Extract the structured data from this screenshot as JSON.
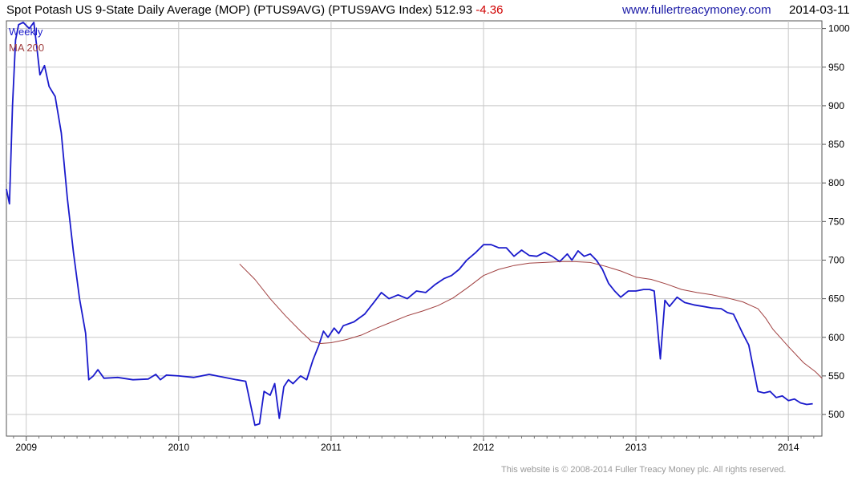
{
  "header": {
    "title": "Spot Potash US 9-State Daily Average (MOP) (PTUS9AVG) (PTUS9AVG Index) 512.93",
    "change": "-4.36",
    "site": "www.fullertreacymoney.com",
    "date": "2014-03-11"
  },
  "footer": "This website is © 2008-2014 Fuller Treacy Money plc. All rights reserved.",
  "colors": {
    "weekly": "#1a1acc",
    "ma": "#a04040",
    "grid": "#c8c8c8",
    "ink": "#000000"
  },
  "chart_data": {
    "type": "line",
    "title": "Spot Potash US 9-State Daily Average (MOP) (PTUS9AVG) (PTUS9AVG Index) 512.93 -4.36",
    "xlabel": "",
    "ylabel": "",
    "grid": true,
    "legend_position": "top-left",
    "xlim": [
      2008.87,
      2014.22
    ],
    "ylim": [
      472,
      1010
    ],
    "y_ticks": [
      500,
      550,
      600,
      650,
      700,
      750,
      800,
      850,
      900,
      950,
      1000
    ],
    "x_ticks": [
      {
        "label": "2009",
        "value": 2009.0
      },
      {
        "label": "2010",
        "value": 2010.0
      },
      {
        "label": "2011",
        "value": 2011.0
      },
      {
        "label": "2012",
        "value": 2012.0
      },
      {
        "label": "2013",
        "value": 2013.0
      },
      {
        "label": "2014",
        "value": 2014.0
      }
    ],
    "series": [
      {
        "name": "Weekly",
        "points": [
          [
            2008.87,
            792
          ],
          [
            2008.89,
            773
          ],
          [
            2008.91,
            900
          ],
          [
            2008.93,
            985
          ],
          [
            2008.95,
            1005
          ],
          [
            2008.98,
            1008
          ],
          [
            2009.02,
            1000
          ],
          [
            2009.05,
            1008
          ],
          [
            2009.07,
            975
          ],
          [
            2009.09,
            940
          ],
          [
            2009.12,
            952
          ],
          [
            2009.15,
            925
          ],
          [
            2009.19,
            912
          ],
          [
            2009.23,
            865
          ],
          [
            2009.27,
            780
          ],
          [
            2009.31,
            710
          ],
          [
            2009.35,
            650
          ],
          [
            2009.39,
            605
          ],
          [
            2009.41,
            545
          ],
          [
            2009.44,
            550
          ],
          [
            2009.47,
            558
          ],
          [
            2009.51,
            547
          ],
          [
            2009.6,
            548
          ],
          [
            2009.7,
            545
          ],
          [
            2009.8,
            546
          ],
          [
            2009.85,
            552
          ],
          [
            2009.88,
            545
          ],
          [
            2009.92,
            551
          ],
          [
            2010.0,
            550
          ],
          [
            2010.1,
            548
          ],
          [
            2010.2,
            552
          ],
          [
            2010.3,
            548
          ],
          [
            2010.38,
            545
          ],
          [
            2010.44,
            543
          ],
          [
            2010.5,
            486
          ],
          [
            2010.53,
            488
          ],
          [
            2010.56,
            530
          ],
          [
            2010.6,
            525
          ],
          [
            2010.63,
            540
          ],
          [
            2010.66,
            495
          ],
          [
            2010.69,
            536
          ],
          [
            2010.72,
            545
          ],
          [
            2010.75,
            540
          ],
          [
            2010.8,
            550
          ],
          [
            2010.84,
            545
          ],
          [
            2010.88,
            570
          ],
          [
            2010.92,
            590
          ],
          [
            2010.95,
            608
          ],
          [
            2010.98,
            600
          ],
          [
            2011.02,
            612
          ],
          [
            2011.05,
            605
          ],
          [
            2011.08,
            615
          ],
          [
            2011.15,
            620
          ],
          [
            2011.22,
            630
          ],
          [
            2011.28,
            645
          ],
          [
            2011.33,
            658
          ],
          [
            2011.38,
            650
          ],
          [
            2011.44,
            655
          ],
          [
            2011.5,
            650
          ],
          [
            2011.56,
            660
          ],
          [
            2011.62,
            658
          ],
          [
            2011.68,
            668
          ],
          [
            2011.74,
            676
          ],
          [
            2011.79,
            680
          ],
          [
            2011.84,
            688
          ],
          [
            2011.89,
            700
          ],
          [
            2011.95,
            710
          ],
          [
            2012.0,
            720
          ],
          [
            2012.05,
            720
          ],
          [
            2012.1,
            716
          ],
          [
            2012.15,
            716
          ],
          [
            2012.2,
            705
          ],
          [
            2012.25,
            713
          ],
          [
            2012.3,
            706
          ],
          [
            2012.35,
            705
          ],
          [
            2012.4,
            710
          ],
          [
            2012.45,
            705
          ],
          [
            2012.5,
            698
          ],
          [
            2012.55,
            708
          ],
          [
            2012.58,
            700
          ],
          [
            2012.62,
            712
          ],
          [
            2012.66,
            705
          ],
          [
            2012.7,
            708
          ],
          [
            2012.74,
            700
          ],
          [
            2012.78,
            688
          ],
          [
            2012.82,
            670
          ],
          [
            2012.86,
            660
          ],
          [
            2012.9,
            652
          ],
          [
            2012.95,
            660
          ],
          [
            2013.0,
            660
          ],
          [
            2013.05,
            662
          ],
          [
            2013.09,
            662
          ],
          [
            2013.12,
            660
          ],
          [
            2013.16,
            572
          ],
          [
            2013.19,
            648
          ],
          [
            2013.22,
            640
          ],
          [
            2013.27,
            652
          ],
          [
            2013.32,
            645
          ],
          [
            2013.38,
            642
          ],
          [
            2013.44,
            640
          ],
          [
            2013.5,
            638
          ],
          [
            2013.56,
            637
          ],
          [
            2013.6,
            632
          ],
          [
            2013.64,
            630
          ],
          [
            2013.7,
            605
          ],
          [
            2013.74,
            590
          ],
          [
            2013.77,
            560
          ],
          [
            2013.8,
            530
          ],
          [
            2013.84,
            528
          ],
          [
            2013.88,
            530
          ],
          [
            2013.92,
            522
          ],
          [
            2013.96,
            524
          ],
          [
            2014.0,
            518
          ],
          [
            2014.04,
            520
          ],
          [
            2014.08,
            515
          ],
          [
            2014.12,
            513
          ],
          [
            2014.16,
            514
          ]
        ]
      },
      {
        "name": "MA 200",
        "points": [
          [
            2010.4,
            695
          ],
          [
            2010.5,
            675
          ],
          [
            2010.6,
            650
          ],
          [
            2010.7,
            628
          ],
          [
            2010.8,
            608
          ],
          [
            2010.87,
            595
          ],
          [
            2010.93,
            592
          ],
          [
            2011.0,
            593
          ],
          [
            2011.1,
            597
          ],
          [
            2011.2,
            603
          ],
          [
            2011.3,
            612
          ],
          [
            2011.4,
            620
          ],
          [
            2011.5,
            628
          ],
          [
            2011.6,
            634
          ],
          [
            2011.7,
            641
          ],
          [
            2011.8,
            651
          ],
          [
            2011.9,
            665
          ],
          [
            2012.0,
            680
          ],
          [
            2012.1,
            688
          ],
          [
            2012.2,
            693
          ],
          [
            2012.3,
            696
          ],
          [
            2012.4,
            697
          ],
          [
            2012.5,
            698
          ],
          [
            2012.6,
            698
          ],
          [
            2012.7,
            697
          ],
          [
            2012.8,
            692
          ],
          [
            2012.9,
            686
          ],
          [
            2013.0,
            678
          ],
          [
            2013.1,
            675
          ],
          [
            2013.2,
            669
          ],
          [
            2013.3,
            662
          ],
          [
            2013.4,
            658
          ],
          [
            2013.5,
            655
          ],
          [
            2013.6,
            651
          ],
          [
            2013.7,
            646
          ],
          [
            2013.8,
            637
          ],
          [
            2013.85,
            625
          ],
          [
            2013.9,
            610
          ],
          [
            2014.0,
            588
          ],
          [
            2014.1,
            567
          ],
          [
            2014.18,
            555
          ],
          [
            2014.22,
            547
          ]
        ]
      }
    ]
  }
}
